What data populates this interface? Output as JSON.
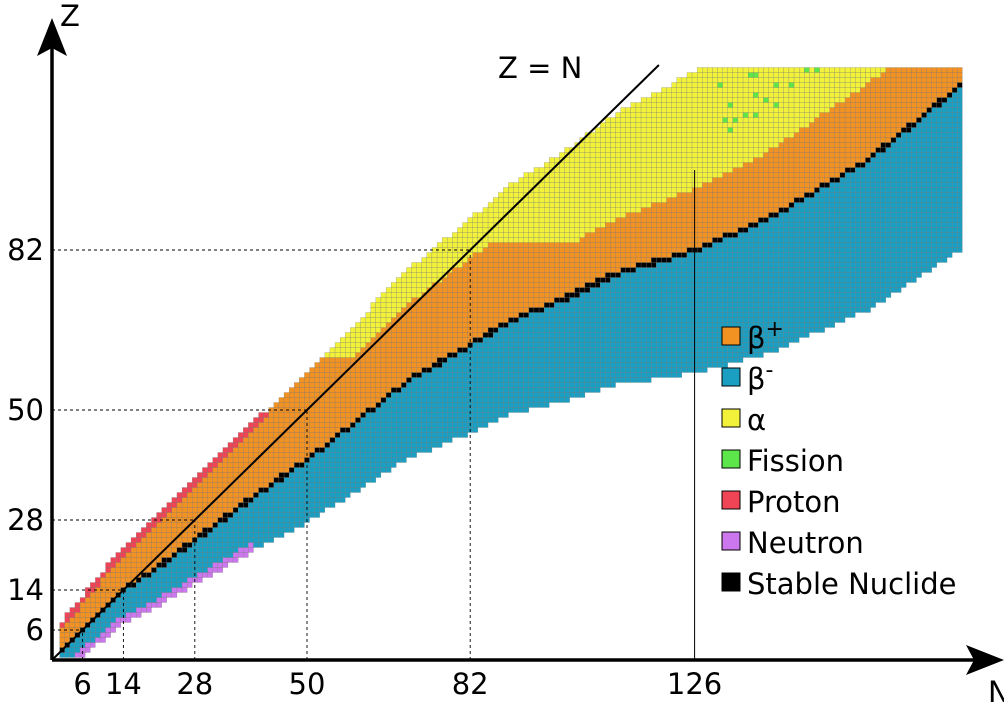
{
  "chart_data": {
    "type": "heatmap",
    "title": "",
    "xlabel": "N",
    "ylabel": "Z",
    "xlim": [
      0,
      182
    ],
    "ylim": [
      0,
      118
    ],
    "x_ticks": [
      6,
      14,
      28,
      50,
      82,
      126
    ],
    "y_ticks": [
      6,
      14,
      28,
      50,
      82
    ],
    "x_tick_labels": [
      "6",
      "14",
      "28",
      "50",
      "82",
      "126"
    ],
    "y_tick_labels": [
      "6",
      "14",
      "28",
      "50",
      "82"
    ],
    "magic_lines": {
      "dashed": [
        6,
        14,
        28,
        50,
        82
      ],
      "solid": [
        126
      ]
    },
    "reference_line": {
      "label": "Z = N",
      "slope": 1,
      "intercept": 0
    },
    "legend_position": "right",
    "legend": [
      {
        "key": "beta_plus",
        "label_main": "β",
        "label_sup": "+",
        "color": "#f29222"
      },
      {
        "key": "beta_minus",
        "label_main": "β",
        "label_sup": "-",
        "color": "#1a9fc2"
      },
      {
        "key": "alpha",
        "label_main": "α",
        "label_sup": "",
        "color": "#f2f23a"
      },
      {
        "key": "fission",
        "label_main": "Fission",
        "label_sup": "",
        "color": "#5ce64a"
      },
      {
        "key": "proton",
        "label_main": "Proton",
        "label_sup": "",
        "color": "#ee4455"
      },
      {
        "key": "neutron",
        "label_main": "Neutron",
        "label_sup": "",
        "color": "#cc77ee"
      },
      {
        "key": "stable",
        "label_main": "Stable Nuclide",
        "label_sup": "",
        "color": "#000000"
      }
    ],
    "stability_valley": [
      [
        1,
        1
      ],
      [
        6,
        6
      ],
      [
        14,
        14
      ],
      [
        20,
        18
      ],
      [
        28,
        24
      ],
      [
        40,
        33
      ],
      [
        50,
        40
      ],
      [
        60,
        48
      ],
      [
        70,
        56
      ],
      [
        82,
        63
      ],
      [
        90,
        68
      ],
      [
        100,
        72
      ],
      [
        110,
        77
      ],
      [
        126,
        82
      ],
      [
        140,
        88
      ],
      [
        160,
        100
      ],
      [
        182,
        118
      ]
    ]
  }
}
